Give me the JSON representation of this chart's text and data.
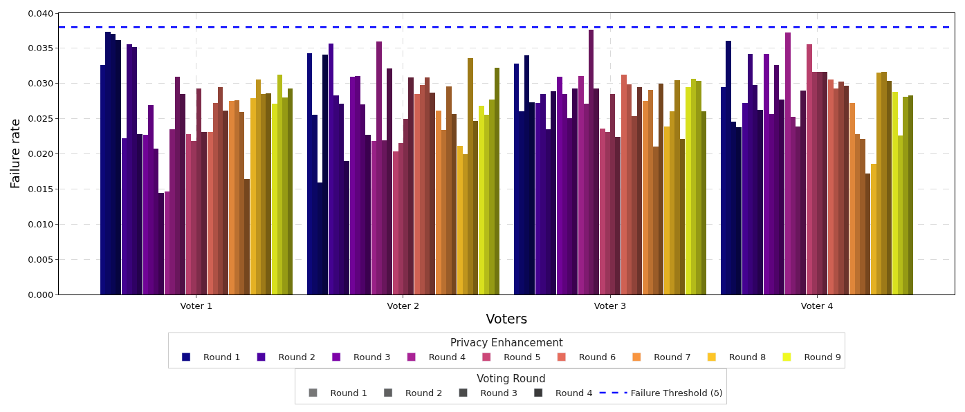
{
  "chart_data": {
    "type": "bar",
    "xlabel": "Voters",
    "ylabel": "Failure rate",
    "legend_title": "Privacy Enhancement",
    "annotations": [
      "Voting Round"
    ],
    "categories": [
      "Voter 1",
      "Voter 2",
      "Voter 3",
      "Voter 4"
    ],
    "ylim": [
      0,
      0.04
    ],
    "yticks": [
      {
        "value": 0,
        "label": "0.000"
      },
      {
        "value": 0.005,
        "label": "0.005"
      },
      {
        "value": 0.01,
        "label": "0.010"
      },
      {
        "value": 0.015,
        "label": "0.015"
      },
      {
        "value": 0.02,
        "label": "0.020"
      },
      {
        "value": 0.025,
        "label": "0.025"
      },
      {
        "value": 0.03,
        "label": "0.030"
      },
      {
        "value": 0.035,
        "label": "0.035"
      },
      {
        "value": 0.04,
        "label": "0.040"
      }
    ],
    "grid": true,
    "legend": "bottom",
    "ref_lines": [
      {
        "axis": "y",
        "value": 0.038,
        "label": "Failure Threshold (δ)",
        "color": "#0000ff",
        "line_style": "dashed"
      }
    ],
    "series": [
      {
        "color": "#0c077a",
        "values": [
          0.0326,
          0.0343,
          0.0328,
          0.0295
        ]
      },
      {
        "color": "#0a0665",
        "values": [
          0.0373,
          0.0256,
          0.026,
          0.0361
        ]
      },
      {
        "color": "#080554",
        "values": [
          0.0371,
          0.0159,
          0.034,
          0.0246
        ]
      },
      {
        "color": "#06043f",
        "values": [
          0.0362,
          0.0341,
          0.0273,
          0.0238
        ]
      },
      {
        "color": "#440291",
        "values": [
          0.0222,
          0.0357,
          0.0272,
          0.0272
        ]
      },
      {
        "color": "#390279",
        "values": [
          0.0356,
          0.0283,
          0.0285,
          0.0342
        ]
      },
      {
        "color": "#2f0164",
        "values": [
          0.0352,
          0.0271,
          0.0235,
          0.0298
        ]
      },
      {
        "color": "#24014c",
        "values": [
          0.0228,
          0.019,
          0.0289,
          0.0262
        ]
      },
      {
        "color": "#710397",
        "values": [
          0.0227,
          0.031,
          0.031,
          0.0342
        ]
      },
      {
        "color": "#5f027e",
        "values": [
          0.0269,
          0.0311,
          0.0285,
          0.0257
        ]
      },
      {
        "color": "#4e0268",
        "values": [
          0.0207,
          0.027,
          0.0251,
          0.0326
        ]
      },
      {
        "color": "#3b014f",
        "values": [
          0.0144,
          0.0227,
          0.0293,
          0.0277
        ]
      },
      {
        "color": "#982086",
        "values": [
          0.0146,
          0.0218,
          0.0311,
          0.0372
        ]
      },
      {
        "color": "#7f1a70",
        "values": [
          0.0235,
          0.036,
          0.0271,
          0.0253
        ]
      },
      {
        "color": "#69165c",
        "values": [
          0.031,
          0.0219,
          0.0376,
          0.0239
        ]
      },
      {
        "color": "#4f1046",
        "values": [
          0.0285,
          0.0321,
          0.0293,
          0.029
        ]
      },
      {
        "color": "#b8406c",
        "values": [
          0.0228,
          0.0203,
          0.0236,
          0.0356
        ]
      },
      {
        "color": "#99355a",
        "values": [
          0.0218,
          0.0215,
          0.0231,
          0.0316
        ]
      },
      {
        "color": "#7e2c4a",
        "values": [
          0.0293,
          0.025,
          0.0285,
          0.0316
        ]
      },
      {
        "color": "#602138",
        "values": [
          0.0231,
          0.0309,
          0.0224,
          0.0316
        ]
      },
      {
        "color": "#cf6153",
        "values": [
          0.0231,
          0.0285,
          0.0313,
          0.0306
        ]
      },
      {
        "color": "#ad5145",
        "values": [
          0.0272,
          0.0298,
          0.0299,
          0.0293
        ]
      },
      {
        "color": "#8f4339",
        "values": [
          0.0295,
          0.0309,
          0.0254,
          0.0303
        ]
      },
      {
        "color": "#6c332b",
        "values": [
          0.0261,
          0.0287,
          0.0295,
          0.0297
        ]
      },
      {
        "color": "#df863a",
        "values": [
          0.0275,
          0.0261,
          0.0275,
          0.0272
        ]
      },
      {
        "color": "#ba7030",
        "values": [
          0.0276,
          0.0234,
          0.0291,
          0.0228
        ]
      },
      {
        "color": "#9a5c28",
        "values": [
          0.0259,
          0.0296,
          0.021,
          0.0221
        ]
      },
      {
        "color": "#75461e",
        "values": [
          0.0164,
          0.0257,
          0.03,
          0.0172
        ]
      },
      {
        "color": "#e4b123",
        "values": [
          0.0279,
          0.0211,
          0.0239,
          0.0186
        ]
      },
      {
        "color": "#be941d",
        "values": [
          0.0306,
          0.02,
          0.026,
          0.0315
        ]
      },
      {
        "color": "#9d7a18",
        "values": [
          0.0285,
          0.0336,
          0.0305,
          0.0316
        ]
      },
      {
        "color": "#775d12",
        "values": [
          0.0286,
          0.0247,
          0.0221,
          0.0304
        ]
      },
      {
        "color": "#d8e01e",
        "values": [
          0.0271,
          0.0268,
          0.0295,
          0.0288
        ]
      },
      {
        "color": "#b4bb19",
        "values": [
          0.0313,
          0.0256,
          0.0307,
          0.0226
        ]
      },
      {
        "color": "#959a14",
        "values": [
          0.028,
          0.0277,
          0.0304,
          0.0281
        ]
      },
      {
        "color": "#717510",
        "values": [
          0.0293,
          0.0322,
          0.026,
          0.0283
        ]
      },
      {
        "name": "Round 1",
        "color": "#0d0887",
        "values": [
          null,
          null,
          null,
          null
        ]
      },
      {
        "name": "Round 2",
        "color": "#4c02a1",
        "values": [
          null,
          null,
          null,
          null
        ]
      },
      {
        "name": "Round 3",
        "color": "#7e03a8",
        "values": [
          null,
          null,
          null,
          null
        ]
      },
      {
        "name": "Round 4",
        "color": "#a92395",
        "values": [
          null,
          null,
          null,
          null
        ]
      },
      {
        "name": "Round 5",
        "color": "#cc4778",
        "values": [
          null,
          null,
          null,
          null
        ]
      },
      {
        "name": "Round 6",
        "color": "#e66c5c",
        "values": [
          null,
          null,
          null,
          null
        ]
      },
      {
        "name": "Round 7",
        "color": "#f89540",
        "values": [
          null,
          null,
          null,
          null
        ]
      },
      {
        "name": "Round 8",
        "color": "#fdc527",
        "values": [
          null,
          null,
          null,
          null
        ]
      },
      {
        "name": "Round 9",
        "color": "#f0f921",
        "values": [
          null,
          null,
          null,
          null
        ]
      },
      {
        "name": "Round 1",
        "color": "#777777",
        "values": [
          null,
          null,
          null,
          null
        ]
      },
      {
        "name": "Round 2",
        "color": "#606060",
        "values": [
          null,
          null,
          null,
          null
        ]
      },
      {
        "name": "Round 3",
        "color": "#4b4b4b",
        "values": [
          null,
          null,
          null,
          null
        ]
      },
      {
        "name": "Round 4",
        "color": "#3a3a3a",
        "values": [
          null,
          null,
          null,
          null
        ]
      }
    ]
  }
}
